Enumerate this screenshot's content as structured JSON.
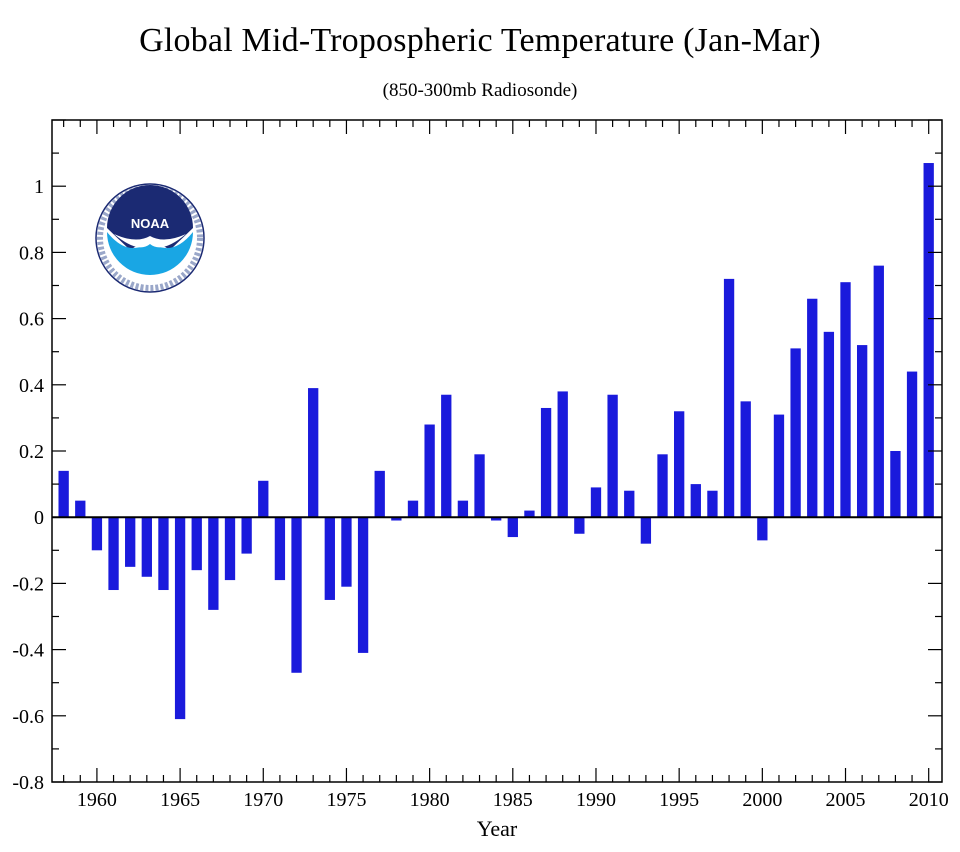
{
  "colors": {
    "bar": "#1a1adc",
    "axis": "#000000",
    "noaa_dark": "#1b2a73",
    "noaa_light": "#19a6e4"
  },
  "logo": {
    "text": "NOAA",
    "alt_name": "noaa-logo"
  },
  "chart_data": {
    "type": "bar",
    "title": "Global Mid-Tropospheric Temperature (Jan-Mar)",
    "subtitle": "(850-300mb Radiosonde)",
    "xlabel": "Year",
    "ylabel": "",
    "xlim": [
      1957.3,
      2010.8
    ],
    "ylim": [
      -0.8,
      1.2
    ],
    "yticks": [
      -0.8,
      -0.6,
      -0.4,
      -0.2,
      0,
      0.2,
      0.4,
      0.6,
      0.8,
      1
    ],
    "ytick_labels": [
      "-0.8",
      "-0.6",
      "-0.4",
      "-0.2",
      "0",
      "0.2",
      "0.4",
      "0.6",
      "0.8",
      "1"
    ],
    "xticks": [
      1960,
      1965,
      1970,
      1975,
      1980,
      1985,
      1990,
      1995,
      2000,
      2005,
      2010
    ],
    "xtick_labels": [
      "1960",
      "1965",
      "1970",
      "1975",
      "1980",
      "1985",
      "1990",
      "1995",
      "2000",
      "2005",
      "2010"
    ],
    "categories": [
      1958,
      1959,
      1960,
      1961,
      1962,
      1963,
      1964,
      1965,
      1966,
      1967,
      1968,
      1969,
      1970,
      1971,
      1972,
      1973,
      1974,
      1975,
      1976,
      1977,
      1978,
      1979,
      1980,
      1981,
      1982,
      1983,
      1984,
      1985,
      1986,
      1987,
      1988,
      1989,
      1990,
      1991,
      1992,
      1993,
      1994,
      1995,
      1996,
      1997,
      1998,
      1999,
      2000,
      2001,
      2002,
      2003,
      2004,
      2005,
      2006,
      2007,
      2008,
      2009,
      2010
    ],
    "values": [
      0.14,
      0.05,
      -0.1,
      -0.22,
      -0.15,
      -0.18,
      -0.22,
      -0.61,
      -0.16,
      -0.28,
      -0.19,
      -0.11,
      0.11,
      -0.19,
      -0.47,
      0.39,
      -0.25,
      -0.21,
      -0.41,
      0.14,
      -0.01,
      0.05,
      0.28,
      0.37,
      0.05,
      0.19,
      -0.01,
      -0.06,
      0.02,
      0.33,
      0.38,
      -0.05,
      0.09,
      0.37,
      0.08,
      -0.08,
      0.19,
      0.32,
      0.1,
      0.08,
      0.72,
      0.35,
      -0.07,
      0.31,
      0.51,
      0.66,
      0.56,
      0.71,
      0.52,
      0.76,
      0.2,
      0.44,
      1.07
    ],
    "grid": false
  }
}
